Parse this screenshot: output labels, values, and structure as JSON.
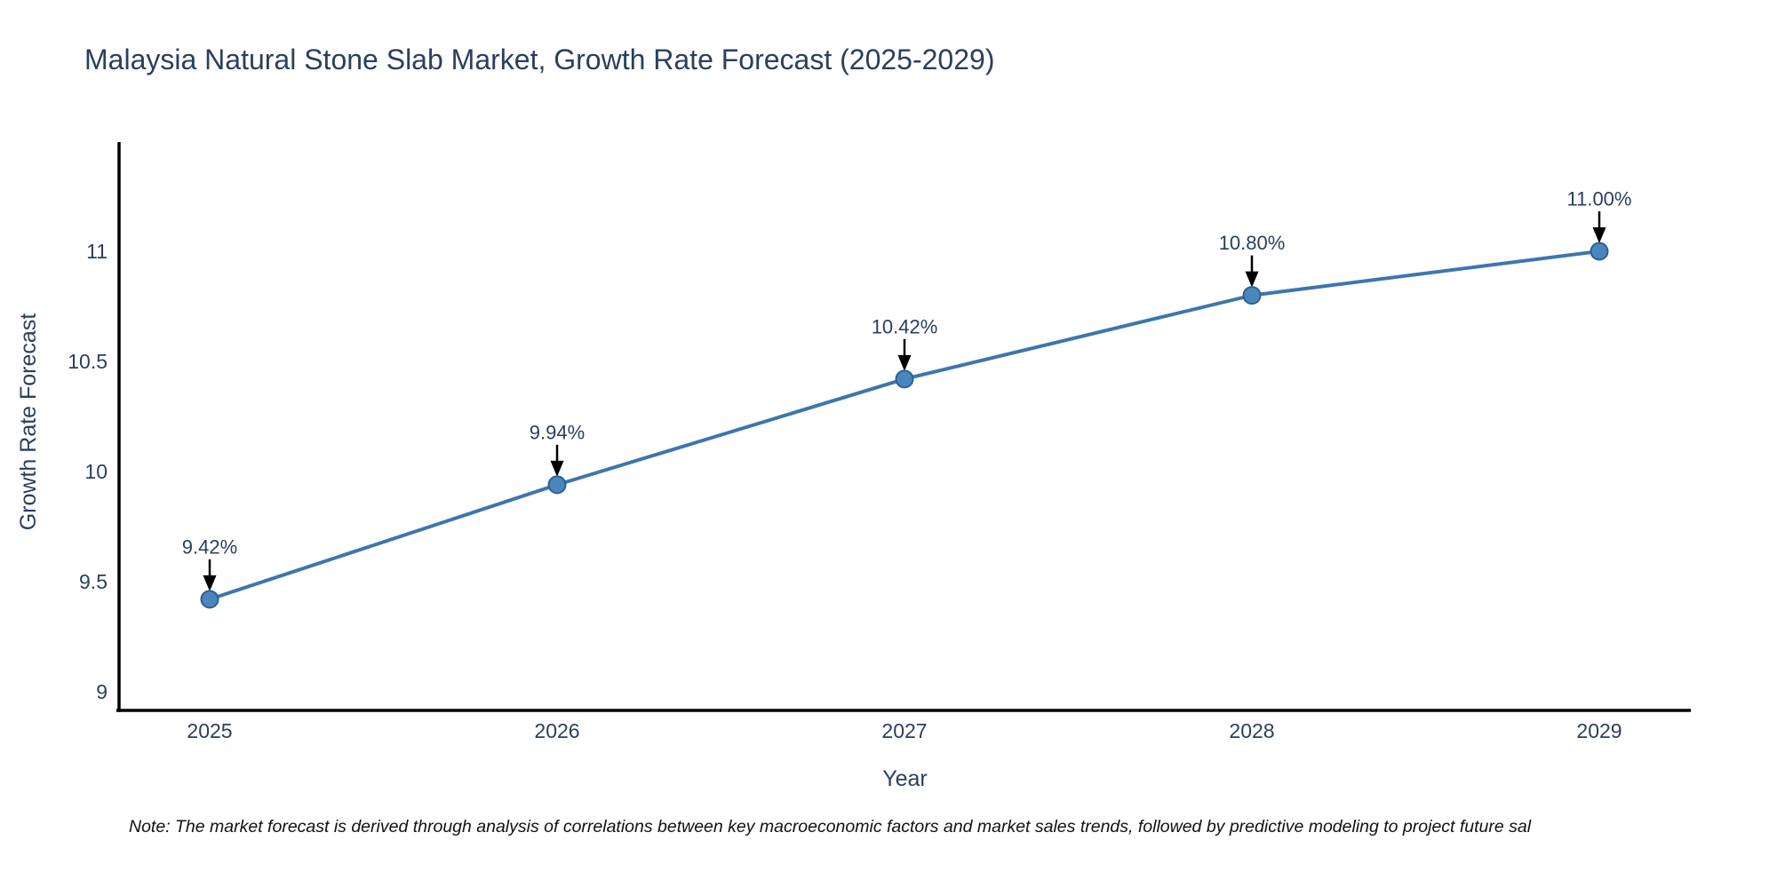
{
  "title": "Malaysia Natural Stone Slab Market, Growth Rate Forecast (2025-2029)",
  "note": "Note: The market forecast is derived through analysis of correlations between key macroeconomic factors and market sales trends, followed by predictive modeling to project future sal",
  "chart_data": {
    "type": "line",
    "title": "Malaysia Natural Stone Slab Market, Growth Rate Forecast (2025-2029)",
    "xlabel": "Year",
    "ylabel": "Growth Rate Forecast",
    "x": [
      2025,
      2026,
      2027,
      2028,
      2029
    ],
    "y": [
      9.42,
      9.94,
      10.42,
      10.8,
      11.0
    ],
    "point_labels": [
      "9.42%",
      "9.94%",
      "10.42%",
      "10.80%",
      "11.00%"
    ],
    "x_ticks": [
      "2025",
      "2026",
      "2027",
      "2028",
      "2029"
    ],
    "y_ticks": [
      "9",
      "9.5",
      "10",
      "10.5",
      "11"
    ],
    "y_tick_values": [
      9,
      9.5,
      10,
      10.5,
      11
    ],
    "xlim": [
      2024.74,
      2029.27
    ],
    "ylim": [
      8.92,
      11.5
    ],
    "grid": false,
    "legend_position": "none",
    "annotations_have_arrows": true,
    "colors": {
      "line": "#3d76ad",
      "marker_fill": "#4a86bd",
      "marker_stroke": "#2e6093",
      "axis_line": "#000000",
      "tick_text": "#2a3f5f",
      "title_text": "#2a3f5f",
      "annotation_text": "#2a3f5f",
      "arrow": "#000000",
      "note_text": "#111111",
      "background": "#ffffff"
    }
  }
}
